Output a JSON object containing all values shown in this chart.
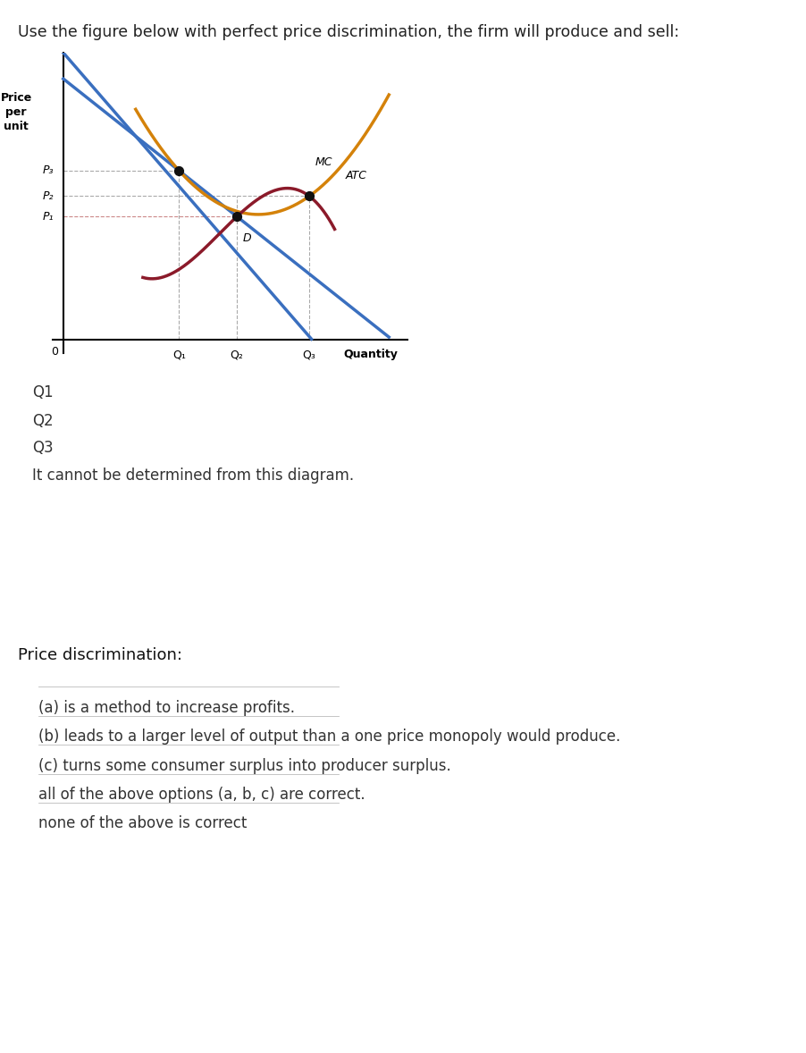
{
  "title": "Use the figure below with perfect price discrimination, the firm will produce and sell:",
  "title_fontsize": 12.5,
  "ylabel": "Price\nper\nunit",
  "xlabel": "Quantity",
  "background_color": "#ffffff",
  "question1_options": [
    "Q1",
    "Q2",
    "Q3",
    "It cannot be determined from this diagram."
  ],
  "question2_label": "Price discrimination:",
  "question2_options": [
    "(a) is a method to increase profits.",
    "(b) leads to a larger level of output than a one price monopoly would produce.",
    "(c) turns some consumer surplus into producer surplus.",
    "all of the above options (a, b, c) are correct.",
    "none of the above is correct"
  ],
  "demand_color": "#3a6fbf",
  "mc_color": "#8b1a2a",
  "atc_color": "#d4820a",
  "dashed_color_gray": "#aaaaaa",
  "dashed_color_pink": "#cc8888",
  "dot_color": "#111111",
  "p_labels": [
    "P₃",
    "P₂",
    "P₁"
  ],
  "q_labels": [
    "Q₁",
    "Q₂",
    "Q₃"
  ],
  "text_color": "#333333",
  "title_color": "#222222"
}
